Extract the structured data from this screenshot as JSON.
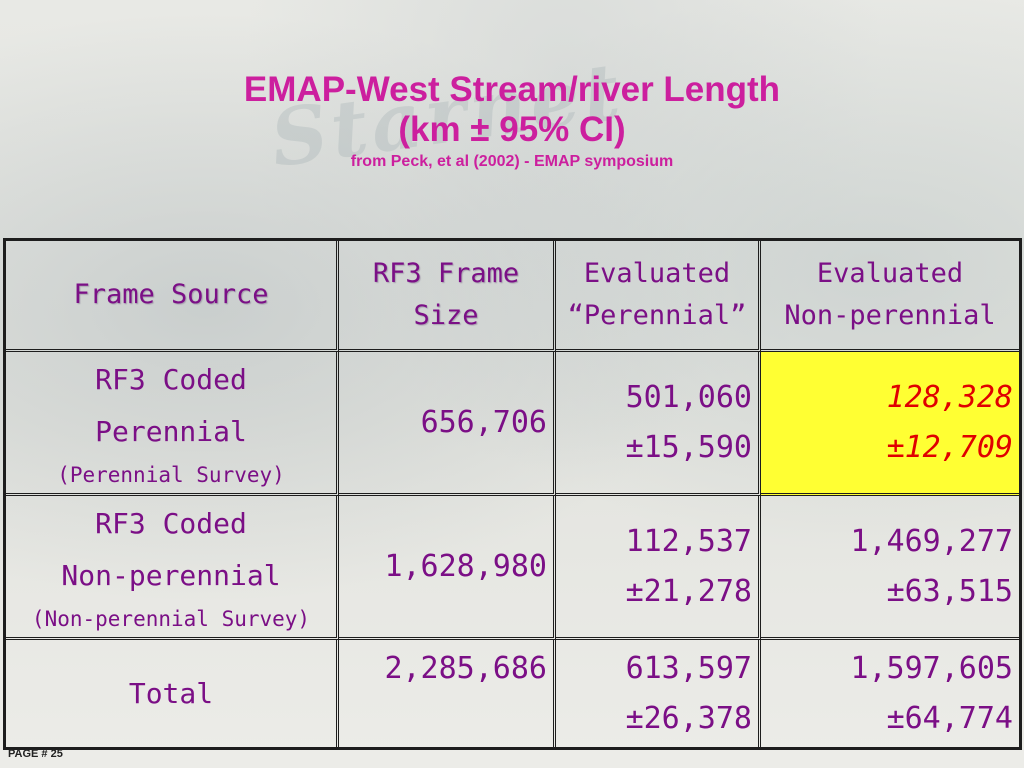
{
  "title": {
    "line1": "EMAP-West Stream/river Length",
    "line2": "(km ± 95% CI)",
    "line3": "from Peck, et al (2002) - EMAP symposium"
  },
  "table": {
    "headers": {
      "frame_source": "Frame Source",
      "rf3_size_line1": "RF3 Frame",
      "rf3_size_line2": "Size",
      "eval_perennial_line1": "Evaluated",
      "eval_perennial_line2": "“Perennial”",
      "eval_nonper_line1": "Evaluated",
      "eval_nonper_line2": "Non-perennial"
    },
    "rows": [
      {
        "label_line1": "RF3 Coded",
        "label_line2": "Perennial",
        "label_sub": "(Perennial Survey)",
        "size": "656,706",
        "perennial_value": "501,060",
        "perennial_ci": "±15,590",
        "nonperennial_value": "128,328",
        "nonperennial_ci": "±12,709"
      },
      {
        "label_line1": "RF3 Coded",
        "label_line2": "Non-perennial",
        "label_sub": "(Non-perennial Survey)",
        "size": "1,628,980",
        "perennial_value": "112,537",
        "perennial_ci": "±21,278",
        "nonperennial_value": "1,469,277",
        "nonperennial_ci": "±63,515"
      },
      {
        "label_line1": "Total",
        "size": "2,285,686",
        "perennial_value": "613,597",
        "perennial_ci": "±26,378",
        "nonperennial_value": "1,597,605",
        "nonperennial_ci": "±64,774"
      }
    ]
  },
  "footer": {
    "page_label": "PAGE # 25"
  },
  "colors": {
    "title": "#cc1f9e",
    "table_text": "#7b0f86",
    "highlight_bg": "#ffff33",
    "highlight_text": "#e00000"
  }
}
